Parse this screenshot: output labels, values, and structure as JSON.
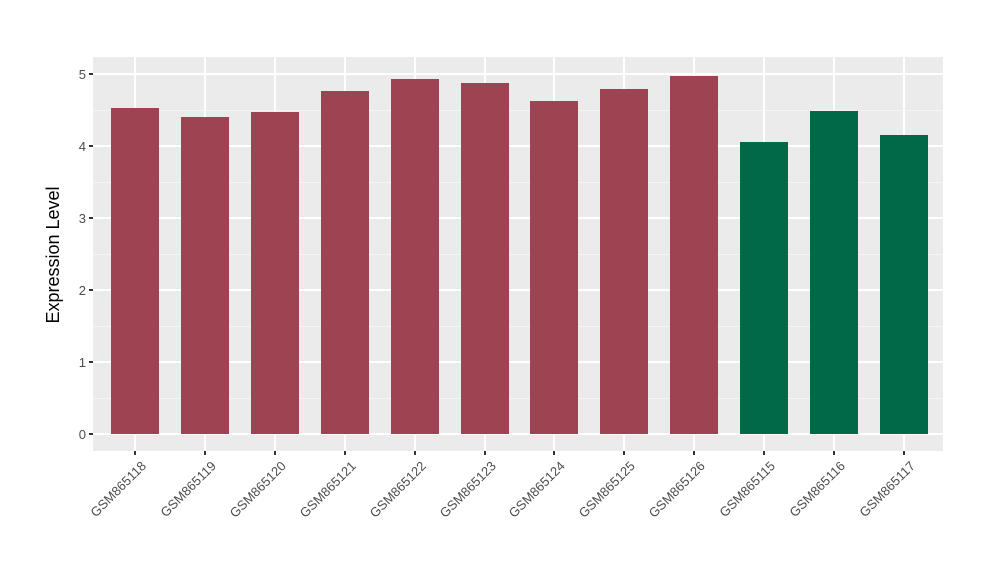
{
  "chart_data": {
    "type": "bar",
    "title": "",
    "xlabel": "",
    "ylabel": "Expression Level",
    "categories": [
      "GSM865118",
      "GSM865119",
      "GSM865120",
      "GSM865121",
      "GSM865122",
      "GSM865123",
      "GSM865124",
      "GSM865125",
      "GSM865126",
      "GSM865115",
      "GSM865116",
      "GSM865117"
    ],
    "values": [
      4.53,
      4.4,
      4.47,
      4.76,
      4.93,
      4.87,
      4.62,
      4.79,
      4.97,
      4.06,
      4.49,
      4.15
    ],
    "bar_colors": [
      "#9D4352",
      "#9D4352",
      "#9D4352",
      "#9D4352",
      "#9D4352",
      "#9D4352",
      "#9D4352",
      "#9D4352",
      "#9D4352",
      "#006948",
      "#006948",
      "#006948"
    ],
    "color_groups": [
      {
        "color": "#9D4352",
        "categories": [
          "GSM865118",
          "GSM865119",
          "GSM865120",
          "GSM865121",
          "GSM865122",
          "GSM865123",
          "GSM865124",
          "GSM865125",
          "GSM865126"
        ]
      },
      {
        "color": "#006948",
        "categories": [
          "GSM865115",
          "GSM865116",
          "GSM865117"
        ]
      }
    ],
    "ylim": [
      0,
      5.25
    ],
    "yticks": [
      0,
      1,
      2,
      3,
      4,
      5
    ],
    "yticks_minor": [
      0.5,
      1.5,
      2.5,
      3.5,
      4.5
    ],
    "grid": true,
    "legend": "none",
    "x_tick_angle": 45,
    "style": {
      "panel_bg": "#EBEBEB",
      "grid_major_color": "#FFFFFF",
      "grid_minor_color": "#F5F5F5",
      "tick_mark_color": "#333333",
      "tick_label_color": "#4D4D4D",
      "axis_title_color": "#000000",
      "figure_bg": "#FFFFFF"
    }
  }
}
